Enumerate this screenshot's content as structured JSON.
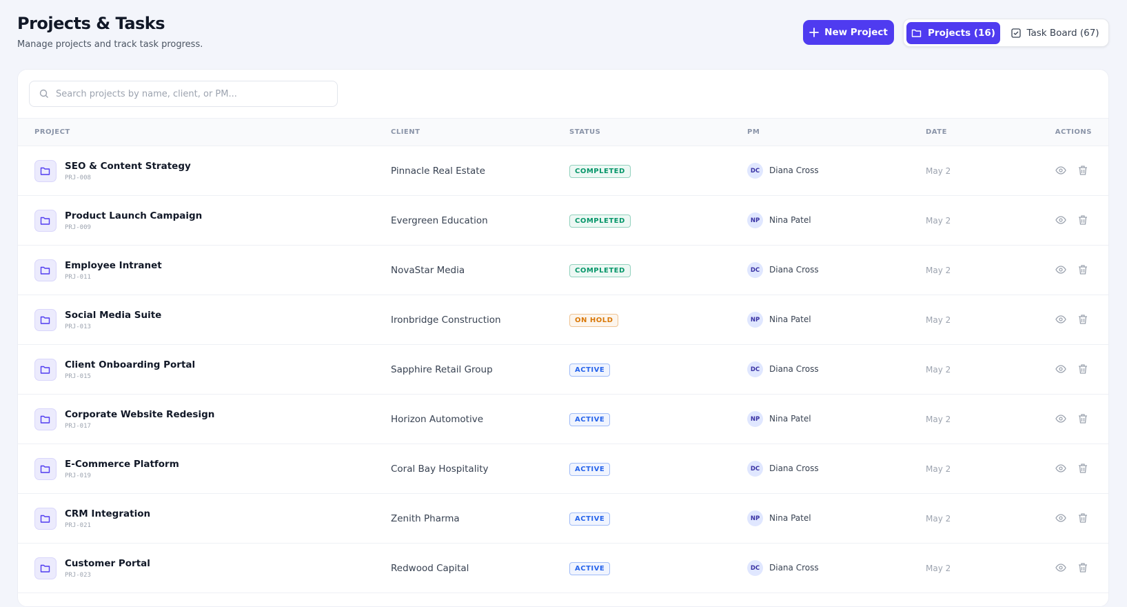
{
  "header": {
    "title": "Projects & Tasks",
    "subtitle": "Manage projects and track task progress."
  },
  "toolbar": {
    "new_project": "New Project",
    "tabs": [
      "Projects (16)",
      "Task Board (67)"
    ]
  },
  "search": {
    "placeholder": "Search projects by name, client, or PM..."
  },
  "table": {
    "columns": [
      "PROJECT",
      "CLIENT",
      "STATUS",
      "PM",
      "DATE",
      "ACTIONS"
    ],
    "rows": [
      {
        "name": "SEO & Content Strategy",
        "code": "PRJ-008",
        "client": "Pinnacle Real Estate",
        "status": "COMPLETED",
        "status_color": "#059669",
        "pm_initials": "DC",
        "pm": "Diana Cross",
        "date": "May 2"
      },
      {
        "name": "Product Launch Campaign",
        "code": "PRJ-009",
        "client": "Evergreen Education",
        "status": "COMPLETED",
        "status_color": "#059669",
        "pm_initials": "NP",
        "pm": "Nina Patel",
        "date": "May 2"
      },
      {
        "name": "Employee Intranet",
        "code": "PRJ-011",
        "client": "NovaStar Media",
        "status": "COMPLETED",
        "status_color": "#059669",
        "pm_initials": "DC",
        "pm": "Diana Cross",
        "date": "May 2"
      },
      {
        "name": "Social Media Suite",
        "code": "PRJ-013",
        "client": "Ironbridge Construction",
        "status": "ON HOLD",
        "status_color": "#d97706",
        "pm_initials": "NP",
        "pm": "Nina Patel",
        "date": "May 2"
      },
      {
        "name": "Client Onboarding Portal",
        "code": "PRJ-015",
        "client": "Sapphire Retail Group",
        "status": "ACTIVE",
        "status_color": "#2563eb",
        "pm_initials": "DC",
        "pm": "Diana Cross",
        "date": "May 2"
      },
      {
        "name": "Corporate Website Redesign",
        "code": "PRJ-017",
        "client": "Horizon Automotive",
        "status": "ACTIVE",
        "status_color": "#2563eb",
        "pm_initials": "NP",
        "pm": "Nina Patel",
        "date": "May 2"
      },
      {
        "name": "E-Commerce Platform",
        "code": "PRJ-019",
        "client": "Coral Bay Hospitality",
        "status": "ACTIVE",
        "status_color": "#2563eb",
        "pm_initials": "DC",
        "pm": "Diana Cross",
        "date": "May 2"
      },
      {
        "name": "CRM Integration",
        "code": "PRJ-021",
        "client": "Zenith Pharma",
        "status": "ACTIVE",
        "status_color": "#2563eb",
        "pm_initials": "NP",
        "pm": "Nina Patel",
        "date": "May 2"
      },
      {
        "name": "Customer Portal",
        "code": "PRJ-023",
        "client": "Redwood Capital",
        "status": "ACTIVE",
        "status_color": "#2563eb",
        "pm_initials": "DC",
        "pm": "Diana Cross",
        "date": "May 2"
      }
    ]
  }
}
